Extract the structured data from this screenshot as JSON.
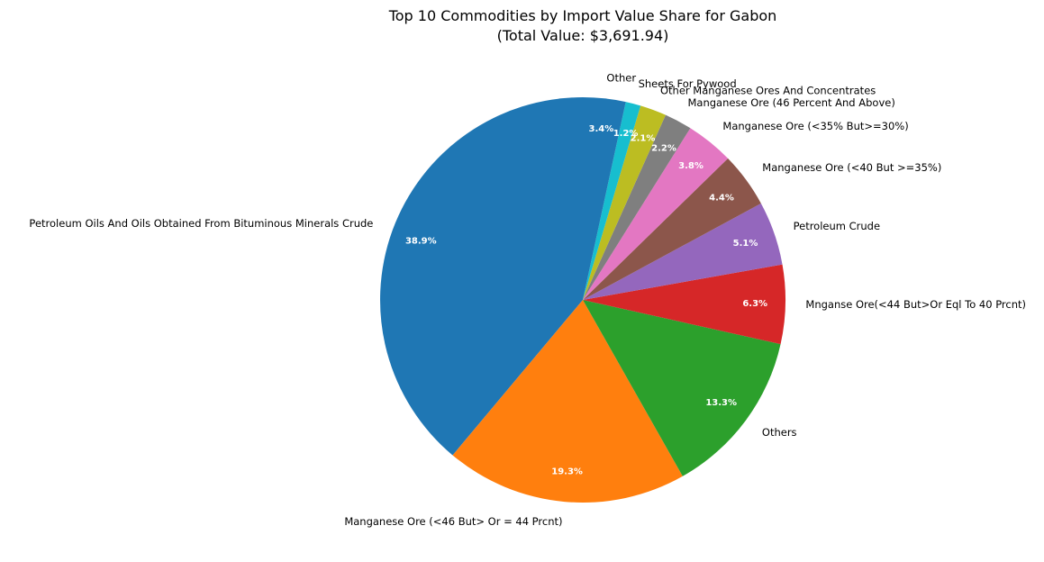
{
  "chart_data": {
    "type": "pie",
    "title": "Top 10 Commodities by Import Value Share for Gabon",
    "subtitle": "(Total Value: $3,691.94)",
    "slices": [
      {
        "label": "Petroleum Oils And Oils Obtained From Bituminous Minerals Crude",
        "value": 38.9,
        "pct_label": "38.9%",
        "color": "#1f77b4"
      },
      {
        "label": "Manganese Ore (<46 But> Or = 44 Prcnt)",
        "value": 19.3,
        "pct_label": "19.3%",
        "color": "#ff7f0e"
      },
      {
        "label": "Others",
        "value": 13.3,
        "pct_label": "13.3%",
        "color": "#2ca02c"
      },
      {
        "label": "Mnganse Ore(<44 But>Or Eql To 40 Prcnt)",
        "value": 6.3,
        "pct_label": "6.3%",
        "color": "#d62728"
      },
      {
        "label": "Petroleum Crude",
        "value": 5.1,
        "pct_label": "5.1%",
        "color": "#9467bd"
      },
      {
        "label": "Manganese Ore (<40 But >=35%)",
        "value": 4.4,
        "pct_label": "4.4%",
        "color": "#8c564b"
      },
      {
        "label": "Manganese Ore (<35% But>=30%)",
        "value": 3.8,
        "pct_label": "3.8%",
        "color": "#e377c2"
      },
      {
        "label": "Manganese Ore (46 Percent And Above)",
        "value": 2.2,
        "pct_label": "2.2%",
        "color": "#7f7f7f"
      },
      {
        "label": "Other Manganese Ores And Concentrates",
        "value": 2.1,
        "pct_label": "2.1%",
        "color": "#bcbd22"
      },
      {
        "label": "Sheets For Pywood",
        "value": 1.2,
        "pct_label": "1.2%",
        "color": "#17becf"
      },
      {
        "label": "Other",
        "value": 3.4,
        "pct_label": "3.4%",
        "color": "#1f77b4"
      }
    ],
    "start_angle_deg": 90,
    "direction": "counterclockwise",
    "legend": "none"
  }
}
